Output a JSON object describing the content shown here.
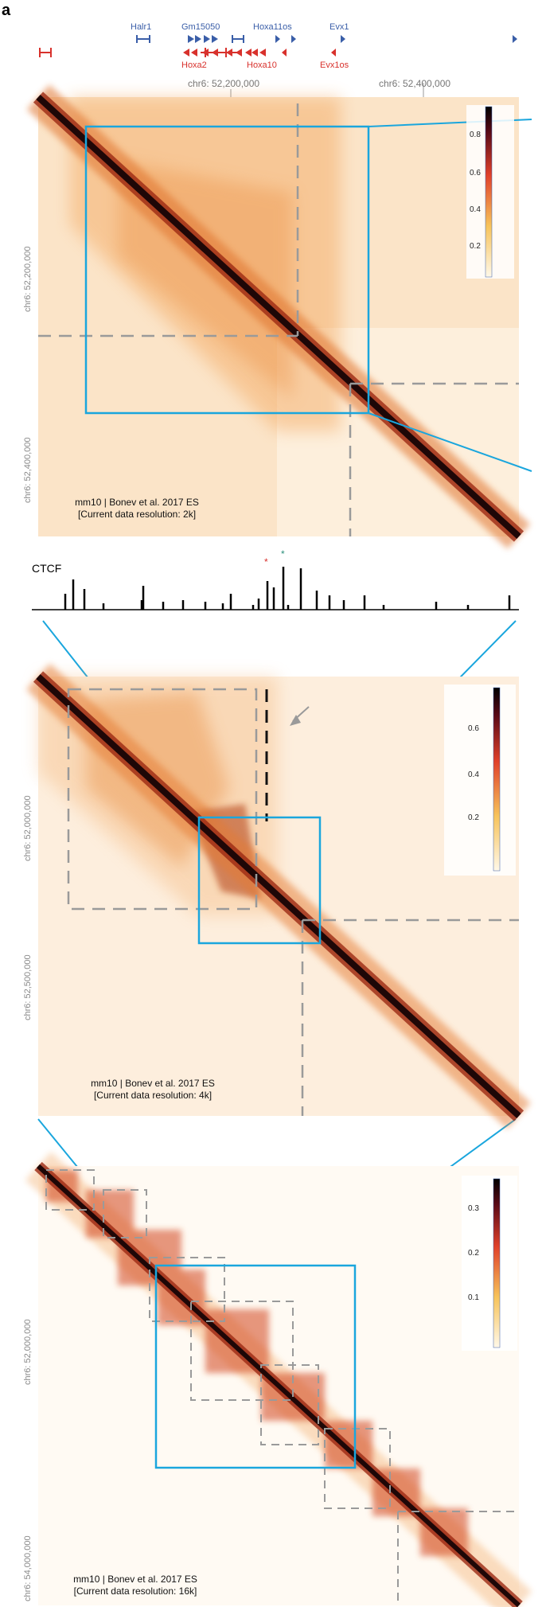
{
  "panel_letter": "a",
  "genes_blue": [
    "Halr1",
    "Gm15050",
    "Hoxa11os",
    "Evx1"
  ],
  "genes_red": [
    "Hoxa2",
    "Hoxa10",
    "Evx1os"
  ],
  "top_coords": [
    "chr6: 52,200,000",
    "chr6: 52,400,000"
  ],
  "ctcf_label": "CTCF",
  "maps": [
    {
      "y_labels": [
        "chr6: 52,200,000",
        "chr6: 52,400,000"
      ],
      "source": "mm10 | Bonev et al. 2017 ES",
      "resolution": "[Current data resolution: 2k]",
      "colorbar_ticks": [
        "0.8",
        "0.6",
        "0.4",
        "0.2"
      ]
    },
    {
      "y_labels": [
        "chr6: 52,000,000",
        "chr6: 52,500,000"
      ],
      "source": "mm10 | Bonev et al. 2017 ES",
      "resolution": "[Current data resolution: 4k]",
      "colorbar_ticks": [
        "0.6",
        "0.4",
        "0.2"
      ]
    },
    {
      "y_labels": [
        "chr6: 52,000,000",
        "chr6: 54,000,000"
      ],
      "source": "mm10 | Bonev et al. 2017 ES",
      "resolution": "[Current data resolution: 16k]",
      "colorbar_ticks": [
        "0.3",
        "0.2",
        "0.1"
      ]
    }
  ],
  "colors": {
    "zoom_box": "#1aa6dd",
    "dashed": "#9a9a9a",
    "gene_blue": "#3a5ea8",
    "gene_red": "#d8312c",
    "map_low": "#fff6e8",
    "map_mid": "#f29b3c",
    "map_high": "#2a0a0a"
  }
}
